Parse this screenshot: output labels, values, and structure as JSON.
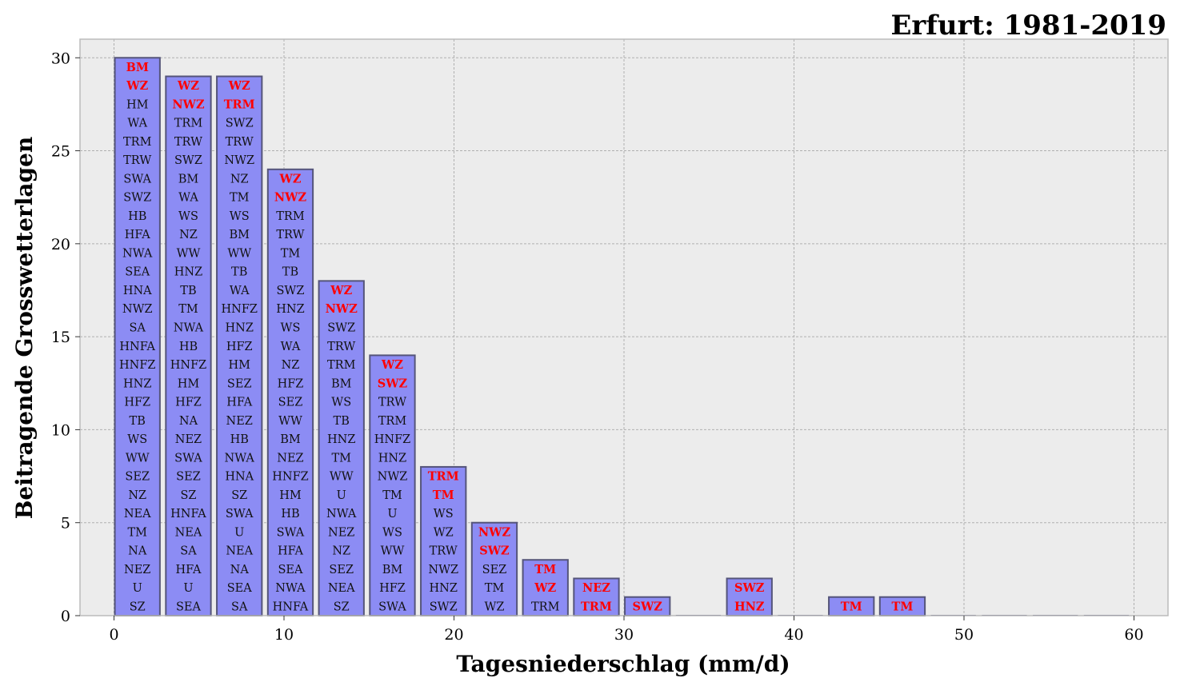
{
  "chart_data": {
    "type": "bar",
    "title": "Erfurt: 1981-2019",
    "xlabel": "Tagesniederschlag (mm/d)",
    "ylabel": "Beitragende Grosswetterlagen",
    "xlim": [
      -2,
      62
    ],
    "ylim": [
      0,
      31
    ],
    "xticks": [
      0,
      10,
      20,
      30,
      40,
      50,
      60
    ],
    "yticks": [
      0,
      5,
      10,
      15,
      20,
      25,
      30
    ],
    "grid": true,
    "bin_width": 3,
    "colors": {
      "bar_fill": "#8c8cf4",
      "bar_edge": "#55557a",
      "plot_bg": "#ececec",
      "highlight_text": "#ff0000",
      "grid": "#b0b0b0"
    },
    "bars": [
      {
        "x": 0,
        "value": 30,
        "highlight": 2,
        "labels": [
          "BM",
          "WZ",
          "HM",
          "WA",
          "TRM",
          "TRW",
          "SWA",
          "SWZ",
          "HB",
          "HFA",
          "NWA",
          "SEA",
          "HNA",
          "NWZ",
          "SA",
          "HNFA",
          "HNFZ",
          "HNZ",
          "HFZ",
          "TB",
          "WS",
          "WW",
          "SEZ",
          "NZ",
          "NEA",
          "TM",
          "NA",
          "NEZ",
          "U",
          "SZ"
        ]
      },
      {
        "x": 3,
        "value": 29,
        "highlight": 2,
        "labels": [
          "WZ",
          "NWZ",
          "TRM",
          "TRW",
          "SWZ",
          "BM",
          "WA",
          "WS",
          "NZ",
          "WW",
          "HNZ",
          "TB",
          "TM",
          "NWA",
          "HB",
          "HNFZ",
          "HM",
          "HFZ",
          "NA",
          "NEZ",
          "SWA",
          "SEZ",
          "SZ",
          "HNFA",
          "NEA",
          "SA",
          "HFA",
          "U",
          "SEA"
        ]
      },
      {
        "x": 6,
        "value": 29,
        "highlight": 2,
        "labels": [
          "WZ",
          "TRM",
          "SWZ",
          "TRW",
          "NWZ",
          "NZ",
          "TM",
          "WS",
          "BM",
          "WW",
          "TB",
          "WA",
          "HNFZ",
          "HNZ",
          "HFZ",
          "HM",
          "SEZ",
          "HFA",
          "NEZ",
          "HB",
          "NWA",
          "HNA",
          "SZ",
          "SWA",
          "U",
          "NEA",
          "NA",
          "SEA",
          "SA"
        ]
      },
      {
        "x": 9,
        "value": 24,
        "highlight": 2,
        "labels": [
          "WZ",
          "NWZ",
          "TRM",
          "TRW",
          "TM",
          "TB",
          "SWZ",
          "HNZ",
          "WS",
          "WA",
          "NZ",
          "HFZ",
          "SEZ",
          "WW",
          "BM",
          "NEZ",
          "HNFZ",
          "HM",
          "HB",
          "SWA",
          "HFA",
          "SEA",
          "NWA",
          "HNFA"
        ]
      },
      {
        "x": 12,
        "value": 18,
        "highlight": 2,
        "labels": [
          "WZ",
          "NWZ",
          "SWZ",
          "TRW",
          "TRM",
          "BM",
          "WS",
          "TB",
          "HNZ",
          "TM",
          "WW",
          "U",
          "NWA",
          "NEZ",
          "NZ",
          "SEZ",
          "NEA",
          "SZ"
        ]
      },
      {
        "x": 15,
        "value": 14,
        "highlight": 2,
        "labels": [
          "WZ",
          "SWZ",
          "TRW",
          "TRM",
          "HNFZ",
          "HNZ",
          "NWZ",
          "TM",
          "U",
          "WS",
          "WW",
          "BM",
          "HFZ",
          "SWA"
        ]
      },
      {
        "x": 18,
        "value": 8,
        "highlight": 2,
        "labels": [
          "TRM",
          "TM",
          "WS",
          "WZ",
          "TRW",
          "NWZ",
          "HNZ",
          "SWZ"
        ]
      },
      {
        "x": 21,
        "value": 5,
        "highlight": 2,
        "labels": [
          "NWZ",
          "SWZ",
          "SEZ",
          "TM",
          "WZ"
        ]
      },
      {
        "x": 24,
        "value": 3,
        "highlight": 2,
        "labels": [
          "TM",
          "WZ",
          "TRM"
        ]
      },
      {
        "x": 27,
        "value": 2,
        "highlight": 2,
        "labels": [
          "NEZ",
          "TRM"
        ]
      },
      {
        "x": 30,
        "value": 1,
        "highlight": 1,
        "labels": [
          "SWZ"
        ]
      },
      {
        "x": 33,
        "value": 0,
        "highlight": 0,
        "labels": []
      },
      {
        "x": 36,
        "value": 2,
        "highlight": 2,
        "labels": [
          "SWZ",
          "HNZ"
        ]
      },
      {
        "x": 39,
        "value": 0,
        "highlight": 0,
        "labels": []
      },
      {
        "x": 42,
        "value": 1,
        "highlight": 1,
        "labels": [
          "TM"
        ]
      },
      {
        "x": 45,
        "value": 1,
        "highlight": 1,
        "labels": [
          "TM"
        ]
      },
      {
        "x": 48,
        "value": 0,
        "highlight": 0,
        "labels": []
      },
      {
        "x": 51,
        "value": 0,
        "highlight": 0,
        "labels": []
      },
      {
        "x": 54,
        "value": 0,
        "highlight": 0,
        "labels": []
      },
      {
        "x": 57,
        "value": 0,
        "highlight": 0,
        "labels": []
      }
    ]
  }
}
